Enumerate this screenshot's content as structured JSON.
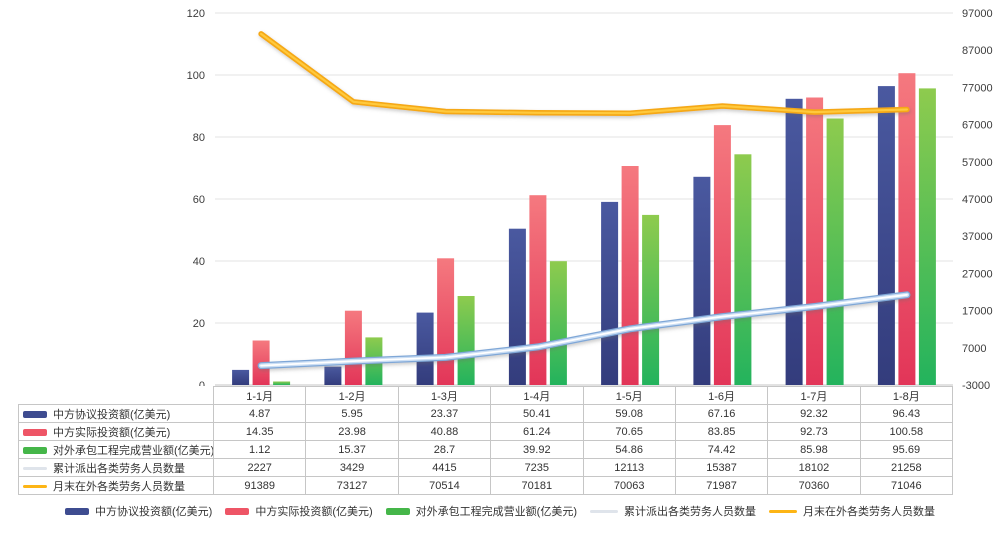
{
  "chart_data": {
    "type": "combo",
    "categories": [
      "1-1月",
      "1-2月",
      "1-3月",
      "1-4月",
      "1-5月",
      "1-6月",
      "1-7月",
      "1-8月"
    ],
    "series": [
      {
        "key": "agreement-investment",
        "name": "中方协议投资额(亿美元)",
        "type": "bar",
        "axis": "left",
        "values": [
          4.87,
          5.95,
          23.37,
          50.41,
          59.08,
          67.16,
          92.32,
          96.43
        ],
        "color_top": "#4a59a0",
        "color_bottom": "#333c7c",
        "swatch": "#3e4c90"
      },
      {
        "key": "actual-investment",
        "name": "中方实际投资额(亿美元)",
        "type": "bar",
        "axis": "left",
        "values": [
          14.35,
          23.98,
          40.88,
          61.24,
          70.65,
          83.85,
          92.73,
          100.58
        ],
        "color_top": "#f5797f",
        "color_bottom": "#e23558",
        "swatch": "#ee5566"
      },
      {
        "key": "contract-revenue",
        "name": "对外承包工程完成营业额(亿美元)",
        "type": "bar",
        "axis": "left",
        "values": [
          1.12,
          15.37,
          28.7,
          39.92,
          54.86,
          74.42,
          85.98,
          95.69
        ],
        "color_top": "#8ecb4e",
        "color_bottom": "#23b35d",
        "swatch": "#45b649"
      },
      {
        "key": "cumulative-dispatched",
        "name": "累计派出各类劳务人员数量",
        "type": "line",
        "axis": "right",
        "values": [
          2227,
          3429,
          4415,
          7235,
          12113,
          15387,
          18102,
          21258
        ],
        "color": "#aecbee",
        "swatch": "#dfe4eb"
      },
      {
        "key": "month-end-abroad",
        "name": "月末在外各类劳务人员数量",
        "type": "line",
        "axis": "right",
        "values": [
          91389,
          73127,
          70514,
          70181,
          70063,
          71987,
          70360,
          71046
        ],
        "color": "#fdb515",
        "swatch": "#fdb515"
      }
    ],
    "left_axis": {
      "min": 0,
      "max": 120,
      "ticks": [
        "0",
        "20",
        "40",
        "60",
        "80",
        "100",
        "120"
      ]
    },
    "right_axis": {
      "min": -3000,
      "max": 97000,
      "ticks": [
        "-3000",
        "7000",
        "17000",
        "27000",
        "37000",
        "47000",
        "57000",
        "67000",
        "77000",
        "87000",
        "97000"
      ]
    },
    "grid": true,
    "legend_position": "bottom",
    "colors": {
      "gridline": "#e3e3e3",
      "axis_line": "#c4c4c4",
      "table_border": "#c6c6c6",
      "line_blue_edge": "#7fa7d7",
      "line_blue_body": "#cbdef4",
      "line_blue_core": "#ffffff",
      "line_gold_edge": "#f5a814",
      "line_gold_core": "#ffc93c"
    }
  }
}
